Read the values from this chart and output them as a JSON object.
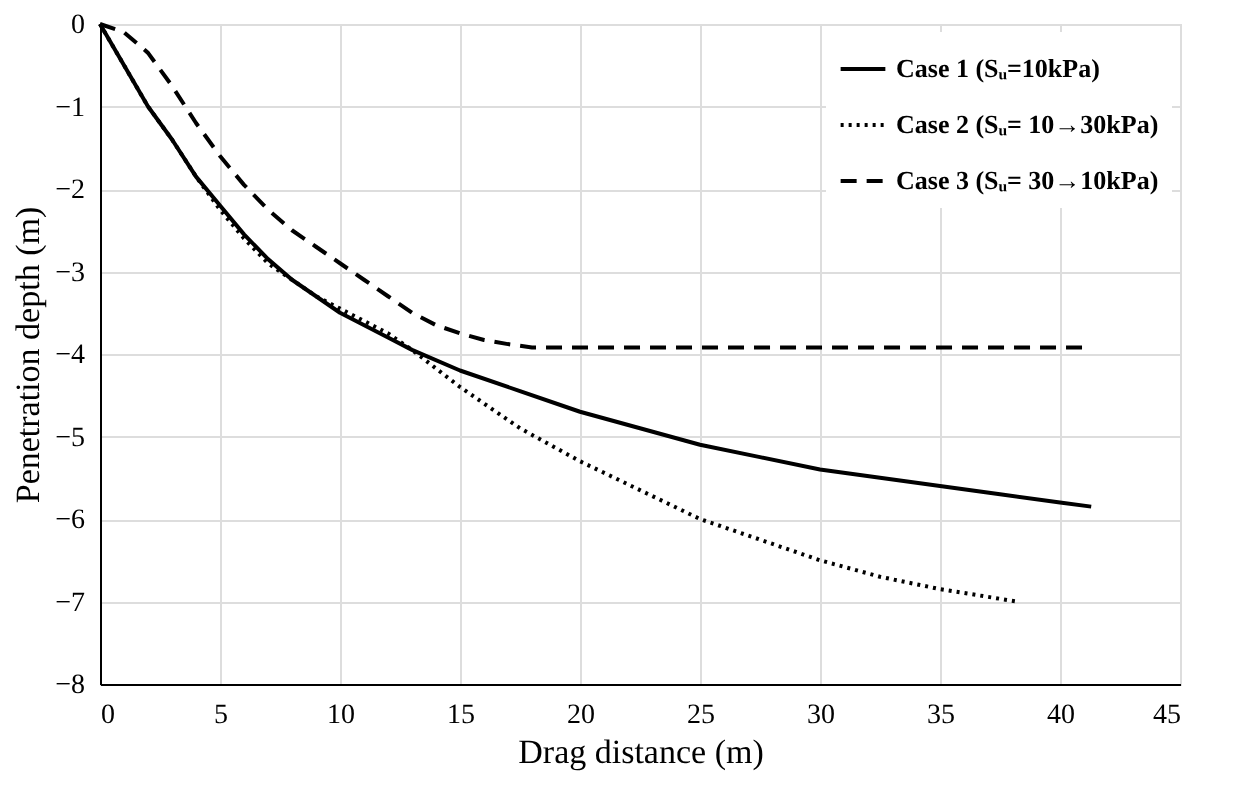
{
  "chart_data": {
    "type": "line",
    "xlabel": "Drag distance (m)",
    "ylabel": "Penetration depth (m)",
    "xlim": [
      0,
      45
    ],
    "ylim": [
      -8,
      0
    ],
    "xticks": [
      0,
      5,
      10,
      15,
      20,
      25,
      30,
      35,
      40,
      45
    ],
    "yticks": [
      -8,
      -7,
      -6,
      -5,
      -4,
      -3,
      -2,
      -1,
      0
    ],
    "grid": true,
    "legend": "top right",
    "marker": "none",
    "series": [
      {
        "name": "Case 1 (Sᵤ=10kPa)",
        "color": "#000000",
        "line_style": "solid",
        "x": [
          0,
          1,
          2,
          3,
          4,
          5,
          6,
          7,
          8,
          9,
          10,
          12,
          13,
          15,
          17.5,
          20,
          22.5,
          25,
          27.5,
          30,
          32.5,
          35,
          37.5,
          40,
          41.3
        ],
        "values": [
          0,
          -0.5,
          -1.0,
          -1.4,
          -1.85,
          -2.2,
          -2.55,
          -2.85,
          -3.1,
          -3.3,
          -3.5,
          -3.8,
          -3.95,
          -4.2,
          -4.45,
          -4.7,
          -4.9,
          -5.1,
          -5.25,
          -5.4,
          -5.5,
          -5.6,
          -5.7,
          -5.8,
          -5.85
        ]
      },
      {
        "name": "Case 2 (Sᵤ= 10→30kPa)",
        "color": "#000000",
        "line_style": "dotted",
        "x": [
          0,
          1,
          2,
          3,
          4,
          5,
          6,
          7,
          8,
          9,
          10,
          12,
          13,
          15,
          17.5,
          20,
          22.5,
          25,
          27.5,
          30,
          32.5,
          35,
          38.2
        ],
        "values": [
          0,
          -0.5,
          -1.0,
          -1.4,
          -1.85,
          -2.25,
          -2.6,
          -2.9,
          -3.1,
          -3.3,
          -3.45,
          -3.75,
          -3.95,
          -4.4,
          -4.9,
          -5.3,
          -5.65,
          -6.0,
          -6.25,
          -6.5,
          -6.7,
          -6.85,
          -7.0
        ]
      },
      {
        "name": "Case 3 (Sᵤ= 30→10kPa)",
        "color": "#000000",
        "line_style": "dashed",
        "x": [
          0,
          1,
          2,
          3,
          4,
          5,
          6,
          7,
          8,
          9,
          10,
          11,
          12,
          13,
          14,
          15,
          16,
          17,
          18,
          20,
          25,
          30,
          35,
          41
        ],
        "values": [
          0,
          -0.1,
          -0.35,
          -0.75,
          -1.2,
          -1.6,
          -1.95,
          -2.25,
          -2.5,
          -2.7,
          -2.9,
          -3.1,
          -3.3,
          -3.5,
          -3.65,
          -3.75,
          -3.83,
          -3.88,
          -3.92,
          -3.92,
          -3.92,
          -3.92,
          -3.92,
          -3.92
        ]
      }
    ]
  }
}
